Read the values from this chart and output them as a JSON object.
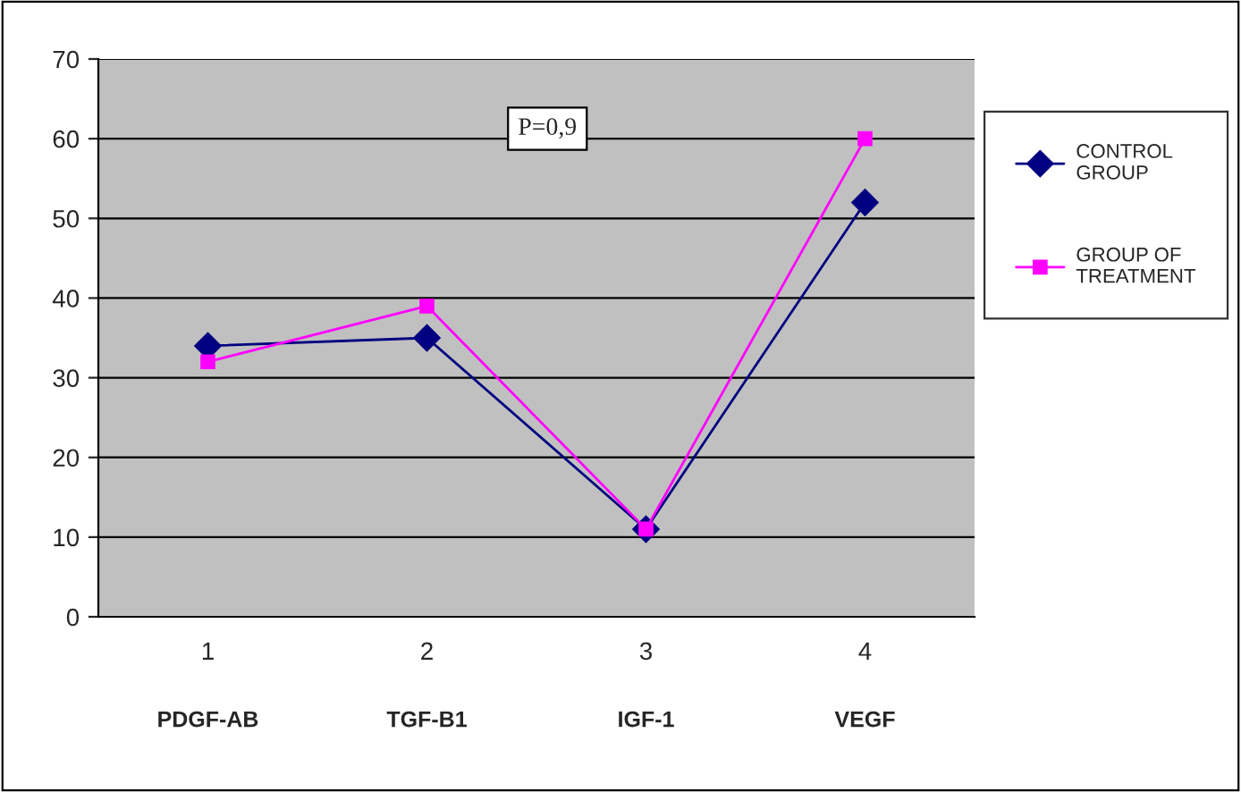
{
  "chart_data": {
    "type": "line",
    "categories": [
      "1",
      "2",
      "3",
      "4"
    ],
    "series": [
      {
        "name": "CONTROL\nGROUP",
        "color": "#000080",
        "marker": "diamond",
        "values": [
          34,
          35,
          11,
          52
        ]
      },
      {
        "name": "GROUP OF\nTREATMENT",
        "color": "#ff00ff",
        "marker": "square",
        "values": [
          32,
          39,
          11,
          60
        ]
      }
    ],
    "ylim": [
      0,
      70
    ],
    "yticks": [
      0,
      10,
      20,
      30,
      40,
      50,
      60,
      70
    ],
    "grid": "y",
    "legend": "right",
    "line_style": "solid",
    "annotations": [
      "P=0,9",
      "PDGF-AB",
      "TGF-B1",
      "IGF-1",
      "VEGF"
    ]
  }
}
